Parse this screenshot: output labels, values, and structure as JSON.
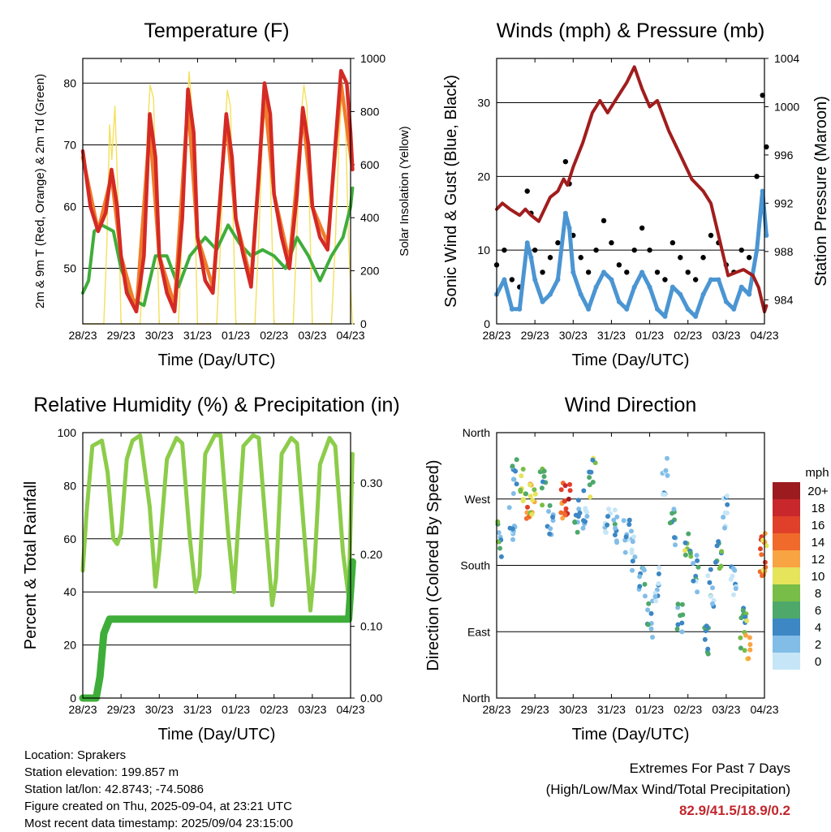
{
  "time_ticks": [
    "28/23",
    "29/23",
    "30/23",
    "31/23",
    "01/23",
    "02/23",
    "03/23",
    "04/23"
  ],
  "xlabel": "Time (Day/UTC)",
  "colors": {
    "t2m": "#d42a25",
    "t9m": "#f07c2b",
    "td": "#3fad3a",
    "solar": "#f4e05a",
    "sonic": "#4b95d2",
    "gust": "#000000",
    "pressure": "#a11d1d",
    "rh": "#8ccc4a",
    "precip": "#3fad3a"
  },
  "chart_data": [
    {
      "type": "line",
      "title": "Temperature (F)",
      "ylabel": "2m & 9m T (Red, Orange) & 2m Td (Green)",
      "y2label": "Solar Insolation (Yellow)",
      "ylim": [
        41,
        84
      ],
      "y2lim": [
        0,
        1000
      ],
      "yticks": [
        50,
        60,
        70,
        80
      ],
      "y2ticks": [
        0,
        200,
        400,
        600,
        800,
        1000
      ],
      "series": [
        {
          "key": "t2m",
          "x": [
            0,
            0.2,
            0.4,
            0.6,
            0.75,
            0.9,
            1,
            1.15,
            1.4,
            1.6,
            1.75,
            1.9,
            2,
            2.2,
            2.4,
            2.6,
            2.75,
            2.9,
            3,
            3.2,
            3.4,
            3.6,
            3.75,
            3.9,
            4,
            4.2,
            4.4,
            4.6,
            4.75,
            4.9,
            5,
            5.2,
            5.4,
            5.6,
            5.75,
            5.9,
            6,
            6.2,
            6.4,
            6.6,
            6.75,
            6.9,
            7,
            7.05
          ],
          "y": [
            69,
            60,
            56,
            59,
            66,
            60,
            52,
            46,
            43,
            52,
            75,
            68,
            52,
            46,
            43,
            58,
            79,
            72,
            55,
            48,
            46,
            62,
            75,
            68,
            58,
            52,
            47,
            65,
            80,
            75,
            62,
            55,
            50,
            62,
            76,
            70,
            60,
            55,
            53,
            70,
            82,
            80,
            72,
            66
          ]
        },
        {
          "key": "t9m",
          "x": [
            0,
            0.4,
            0.75,
            1,
            1.4,
            1.75,
            2,
            2.4,
            2.75,
            3,
            3.4,
            3.75,
            4,
            4.4,
            4.75,
            5,
            5.4,
            5.75,
            6,
            6.4,
            6.75,
            7.05
          ],
          "y": [
            68,
            56,
            65,
            52,
            43,
            73,
            52,
            44,
            77,
            55,
            47,
            74,
            58,
            48,
            78,
            62,
            51,
            75,
            60,
            54,
            80,
            66
          ]
        },
        {
          "key": "td",
          "x": [
            0,
            0.15,
            0.3,
            0.5,
            0.8,
            1,
            1.3,
            1.6,
            1.9,
            2.2,
            2.5,
            2.8,
            3.2,
            3.5,
            3.8,
            4.1,
            4.4,
            4.7,
            5,
            5.3,
            5.6,
            5.9,
            6.2,
            6.5,
            6.8,
            7,
            7.05
          ],
          "y": [
            46,
            48,
            56,
            57,
            56,
            50,
            45,
            44,
            52,
            52,
            47,
            52,
            55,
            53,
            57,
            54,
            52,
            53,
            52,
            50,
            55,
            52,
            48,
            52,
            55,
            60,
            63
          ]
        },
        {
          "key": "solar",
          "axis": "y2",
          "x": [
            0,
            0.55,
            0.63,
            0.7,
            0.76,
            0.84,
            0.95,
            1,
            1.5,
            1.6,
            1.68,
            1.76,
            1.85,
            1.95,
            2,
            2.5,
            2.6,
            2.7,
            2.78,
            2.86,
            2.95,
            3,
            3.5,
            3.6,
            3.7,
            3.78,
            3.86,
            3.95,
            4,
            4.5,
            4.6,
            4.7,
            4.78,
            4.86,
            4.95,
            5,
            5.5,
            5.6,
            5.7,
            5.78,
            5.86,
            5.95,
            6,
            6.5,
            6.6,
            6.7,
            6.78,
            6.86,
            6.95,
            7.05
          ],
          "y": [
            0,
            0,
            300,
            750,
            620,
            820,
            350,
            0,
            0,
            300,
            700,
            900,
            850,
            300,
            0,
            0,
            350,
            750,
            950,
            800,
            300,
            0,
            0,
            300,
            700,
            880,
            820,
            280,
            0,
            0,
            320,
            720,
            860,
            780,
            300,
            0,
            0,
            350,
            780,
            900,
            820,
            300,
            0,
            0,
            300,
            700,
            880,
            800,
            300,
            0
          ]
        }
      ]
    },
    {
      "type": "line",
      "title": "Winds (mph) & Pressure (mb)",
      "ylabel": "Sonic Wind & Gust (Blue, Black)",
      "y2label": "Station Pressure (Maroon)",
      "ylim": [
        0,
        36
      ],
      "y2lim": [
        982,
        1004
      ],
      "yticks": [
        0,
        10,
        20,
        30
      ],
      "y2ticks": [
        984,
        988,
        992,
        996,
        1000,
        1004
      ],
      "series": [
        {
          "key": "pressure",
          "axis": "y2",
          "x": [
            0,
            0.15,
            0.35,
            0.6,
            0.75,
            0.9,
            1.1,
            1.4,
            1.6,
            1.75,
            1.85,
            2,
            2.25,
            2.5,
            2.7,
            2.9,
            3.1,
            3.4,
            3.6,
            3.8,
            4,
            4.2,
            4.5,
            4.8,
            5.1,
            5.4,
            5.6,
            5.75,
            5.9,
            6.05,
            6.2,
            6.45,
            6.7,
            6.85,
            7.0,
            7.05
          ],
          "y": [
            991.5,
            992,
            991.5,
            991,
            991.5,
            991,
            990.5,
            992.5,
            993,
            994,
            993.5,
            995,
            997,
            999.5,
            1000.5,
            999.5,
            1000.5,
            1002,
            1003.3,
            1001.5,
            1000,
            1000.5,
            998,
            996,
            994,
            993,
            992,
            990,
            988,
            986,
            986.2,
            986.5,
            986,
            985,
            983,
            983.5
          ]
        },
        {
          "key": "gust",
          "x": [
            0,
            0.2,
            0.4,
            0.6,
            0.8,
            0.9,
            1,
            1.2,
            1.4,
            1.6,
            1.8,
            1.9,
            2,
            2.2,
            2.4,
            2.6,
            2.8,
            3,
            3.2,
            3.4,
            3.6,
            3.8,
            4,
            4.2,
            4.4,
            4.6,
            4.8,
            5,
            5.2,
            5.4,
            5.6,
            5.8,
            6,
            6.2,
            6.4,
            6.6,
            6.8,
            6.95,
            7.05
          ],
          "y": [
            8,
            10,
            6,
            5,
            18,
            15,
            10,
            7,
            9,
            11,
            22,
            19,
            12,
            9,
            7,
            10,
            14,
            11,
            8,
            7,
            10,
            13,
            10,
            7,
            6,
            11,
            9,
            7,
            6,
            9,
            12,
            11,
            8,
            7,
            10,
            9,
            20,
            31,
            24
          ]
        },
        {
          "key": "sonic",
          "x": [
            0,
            0.2,
            0.4,
            0.6,
            0.8,
            0.9,
            1,
            1.2,
            1.4,
            1.6,
            1.8,
            1.9,
            2,
            2.2,
            2.4,
            2.6,
            2.8,
            3,
            3.2,
            3.4,
            3.6,
            3.8,
            4,
            4.2,
            4.4,
            4.6,
            4.8,
            5,
            5.2,
            5.4,
            5.6,
            5.8,
            6,
            6.2,
            6.4,
            6.6,
            6.8,
            6.95,
            7.05
          ],
          "y": [
            4,
            6,
            2,
            2,
            11,
            9,
            6,
            3,
            4,
            6,
            15,
            13,
            7,
            4,
            2,
            5,
            7,
            6,
            3,
            2,
            5,
            7,
            5,
            2,
            1,
            5,
            4,
            2,
            1,
            4,
            6,
            6,
            3,
            2,
            5,
            4,
            10,
            18,
            12
          ]
        }
      ]
    },
    {
      "type": "line",
      "title": "Relative Humidity (%) & Precipitation (in)",
      "ylabel": "Percent & Total Rainfall",
      "ylim": [
        0,
        100
      ],
      "y2lim": [
        0,
        0.37
      ],
      "yticks": [
        0,
        20,
        40,
        60,
        80,
        100
      ],
      "y2ticks": [
        0.0,
        0.1,
        0.2,
        0.3
      ],
      "y2ticklabels": [
        "0.00",
        "0.10",
        "0.20",
        "0.30"
      ],
      "series": [
        {
          "key": "rh",
          "x": [
            0,
            0.1,
            0.25,
            0.5,
            0.65,
            0.8,
            0.9,
            1,
            1.15,
            1.3,
            1.5,
            1.75,
            1.9,
            2,
            2.2,
            2.45,
            2.6,
            2.8,
            2.95,
            3.05,
            3.2,
            3.45,
            3.6,
            3.8,
            3.95,
            4.05,
            4.2,
            4.45,
            4.6,
            4.8,
            4.95,
            5.05,
            5.2,
            5.45,
            5.6,
            5.8,
            5.95,
            6.05,
            6.2,
            6.45,
            6.6,
            6.8,
            6.95,
            7.05
          ],
          "y": [
            48,
            70,
            95,
            97,
            85,
            60,
            58,
            62,
            90,
            97,
            99,
            72,
            42,
            55,
            90,
            98,
            96,
            60,
            40,
            46,
            92,
            99,
            99,
            62,
            40,
            62,
            95,
            99,
            98,
            62,
            35,
            45,
            92,
            98,
            96,
            60,
            33,
            48,
            88,
            98,
            95,
            55,
            38,
            92
          ]
        },
        {
          "key": "precip",
          "axis": "y2",
          "x": [
            0,
            0.35,
            0.45,
            0.55,
            0.7,
            1,
            2,
            3,
            4,
            5,
            6,
            6.95,
            7.0,
            7.05
          ],
          "y": [
            0,
            0,
            0.03,
            0.09,
            0.11,
            0.11,
            0.11,
            0.11,
            0.11,
            0.11,
            0.11,
            0.11,
            0.15,
            0.19
          ]
        }
      ]
    },
    {
      "type": "scatter",
      "title": "Wind Direction",
      "ylabel": "Direction (Colored By Speed)",
      "yticklabels": [
        "North",
        "East",
        "South",
        "West",
        "North"
      ],
      "legend_title": "mph",
      "legend_labels": [
        "20+",
        "18",
        "16",
        "14",
        "12",
        "10",
        "8",
        "6",
        "4",
        "2",
        "0"
      ],
      "legend_colors": [
        "#9b1b1e",
        "#c8272c",
        "#e0402a",
        "#f06a2b",
        "#f9a443",
        "#e5e45a",
        "#78bd47",
        "#4ea86a",
        "#3c87c4",
        "#82bde8",
        "#c6e6f7"
      ],
      "clusters": [
        {
          "x": 0.1,
          "dir": 215,
          "spd": 5
        },
        {
          "x": 0.4,
          "dir": 235,
          "spd": 3
        },
        {
          "x": 0.45,
          "dir": 300,
          "spd": 4
        },
        {
          "x": 0.7,
          "dir": 290,
          "spd": 8
        },
        {
          "x": 0.85,
          "dir": 270,
          "spd": 14
        },
        {
          "x": 0.95,
          "dir": 275,
          "spd": 10
        },
        {
          "x": 1.2,
          "dir": 285,
          "spd": 5
        },
        {
          "x": 1.4,
          "dir": 240,
          "spd": 4
        },
        {
          "x": 1.75,
          "dir": 270,
          "spd": 14
        },
        {
          "x": 1.85,
          "dir": 265,
          "spd": 17
        },
        {
          "x": 2.1,
          "dir": 245,
          "spd": 4
        },
        {
          "x": 2.3,
          "dir": 255,
          "spd": 3
        },
        {
          "x": 2.5,
          "dir": 300,
          "spd": 7
        },
        {
          "x": 2.9,
          "dir": 245,
          "spd": 2
        },
        {
          "x": 3.1,
          "dir": 235,
          "spd": 3
        },
        {
          "x": 3.4,
          "dir": 225,
          "spd": 2
        },
        {
          "x": 3.6,
          "dir": 200,
          "spd": 1
        },
        {
          "x": 3.8,
          "dir": 165,
          "spd": 4
        },
        {
          "x": 4.0,
          "dir": 110,
          "spd": 3
        },
        {
          "x": 4.2,
          "dir": 150,
          "spd": 2
        },
        {
          "x": 4.4,
          "dir": 300,
          "spd": 3
        },
        {
          "x": 4.6,
          "dir": 230,
          "spd": 4
        },
        {
          "x": 4.8,
          "dir": 110,
          "spd": 5
        },
        {
          "x": 5.0,
          "dir": 215,
          "spd": 7
        },
        {
          "x": 5.2,
          "dir": 170,
          "spd": 3
        },
        {
          "x": 5.5,
          "dir": 80,
          "spd": 4
        },
        {
          "x": 5.6,
          "dir": 150,
          "spd": 3
        },
        {
          "x": 5.8,
          "dir": 200,
          "spd": 6
        },
        {
          "x": 6.0,
          "dir": 250,
          "spd": 2
        },
        {
          "x": 6.2,
          "dir": 155,
          "spd": 1
        },
        {
          "x": 6.45,
          "dir": 95,
          "spd": 6
        },
        {
          "x": 6.55,
          "dir": 80,
          "spd": 10
        },
        {
          "x": 6.95,
          "dir": 198,
          "spd": 15
        },
        {
          "x": 7.0,
          "dir": 190,
          "spd": 12
        }
      ]
    }
  ],
  "info": {
    "location": "Location: Sprakers",
    "elevation": "Station elevation: 199.857 m",
    "latlon": "Station lat/lon: 42.8743; -74.5086",
    "created": "Figure created on Thu, 2025-09-04, at 23:21 UTC",
    "recent": "Most recent data timestamp: 2025/09/04 23:15:00"
  },
  "extremes": {
    "line1": "Extremes For Past 7 Days",
    "line2": "(High/Low/Max Wind/Total Precipitation)",
    "values": "82.9/41.5/18.9/0.2"
  }
}
